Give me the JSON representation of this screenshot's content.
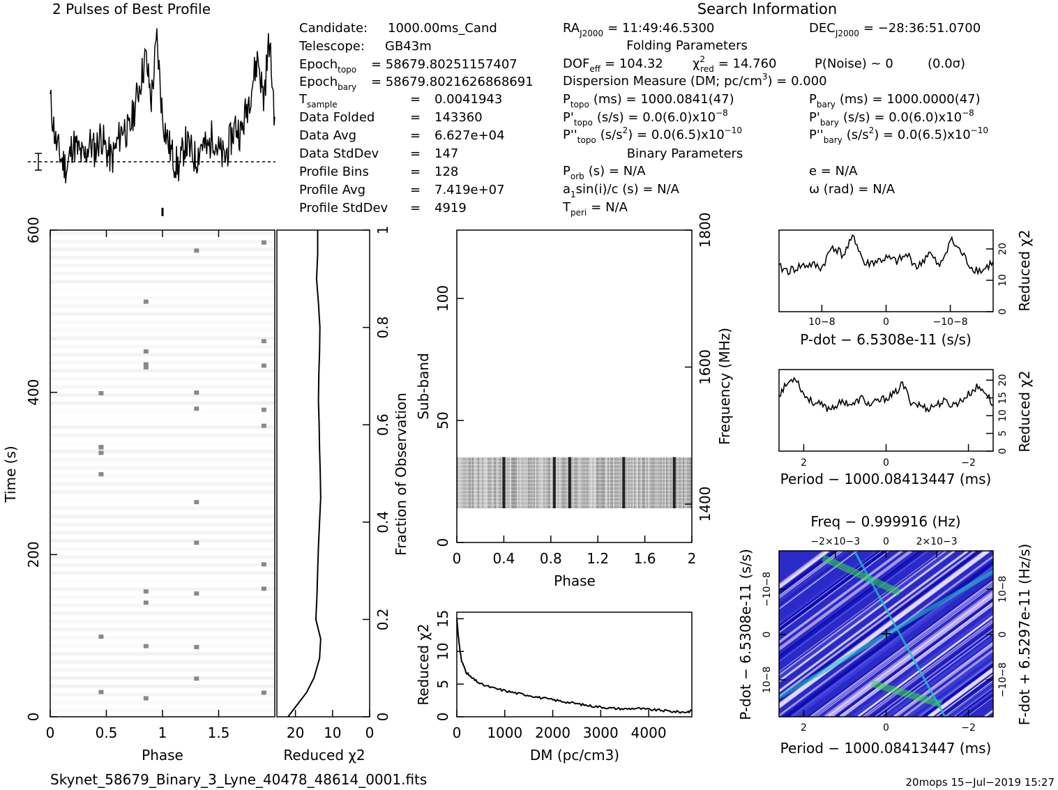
{
  "chart_data": [
    {
      "type": "line",
      "title": "2 Pulses of Best Profile",
      "x": [
        0.0,
        0.05,
        0.1,
        0.15,
        0.2,
        0.25,
        0.3,
        0.35,
        0.4,
        0.45,
        0.5,
        0.55,
        0.6,
        0.65,
        0.7,
        0.75,
        0.8,
        0.85,
        0.9,
        0.95,
        1.0,
        1.05,
        1.1,
        1.15,
        1.2,
        1.25,
        1.3,
        1.35,
        1.4,
        1.45,
        1.5,
        1.55,
        1.6,
        1.65,
        1.7,
        1.75,
        1.8,
        1.85,
        1.9,
        1.95,
        2.0
      ],
      "values": [
        0.6,
        0.35,
        0.25,
        0.2,
        0.35,
        0.3,
        0.25,
        0.35,
        0.3,
        0.4,
        0.3,
        0.25,
        0.35,
        0.45,
        0.4,
        0.55,
        0.7,
        0.85,
        0.6,
        0.95,
        0.5,
        0.35,
        0.25,
        0.2,
        0.35,
        0.3,
        0.25,
        0.35,
        0.3,
        0.4,
        0.3,
        0.25,
        0.35,
        0.45,
        0.4,
        0.55,
        0.7,
        0.85,
        0.6,
        0.95,
        0.5
      ],
      "xlabel": "",
      "ylabel": ""
    },
    {
      "type": "heatmap",
      "xlabel": "Phase",
      "ylabel": "Time (s)",
      "xticks": [
        "0",
        "0.5",
        "1",
        "1.5"
      ],
      "yticks": [
        "0",
        "200",
        "400",
        "600"
      ],
      "xlim": [
        0,
        2
      ],
      "ylim": [
        0,
        600
      ],
      "dark_columns": [
        0.45,
        0.85,
        1.3,
        1.9
      ]
    },
    {
      "type": "line",
      "xlabel": "Reduced χ2",
      "ylabel": "Fraction of Observation",
      "xticks": [
        "20",
        "10",
        "0"
      ],
      "yticks": [
        "0",
        "0.2",
        "0.4",
        "0.6",
        "0.8",
        "1"
      ],
      "xlim": [
        25,
        0
      ],
      "ylim": [
        0,
        1
      ],
      "frac": [
        0.0,
        0.02,
        0.05,
        0.08,
        0.12,
        0.16,
        0.2,
        0.25,
        0.3,
        0.35,
        0.4,
        0.45,
        0.5,
        0.55,
        0.6,
        0.65,
        0.7,
        0.75,
        0.8,
        0.85,
        0.9,
        0.95,
        1.0
      ],
      "values": [
        22,
        20,
        17,
        15,
        13.5,
        13.2,
        14.5,
        14.2,
        14.0,
        13.8,
        13.5,
        13.2,
        13.3,
        13.5,
        13.6,
        13.8,
        13.7,
        13.5,
        13.4,
        13.8,
        14.3,
        14.0,
        14.0
      ]
    },
    {
      "type": "heatmap",
      "xlabel": "Phase",
      "ylabel": "Sub-band",
      "y2label": "Frequency (MHz)",
      "xticks": [
        "0",
        "0.4",
        "0.8",
        "1.2",
        "1.6",
        "2"
      ],
      "yticks": [
        "0",
        "50",
        "100"
      ],
      "y2ticks": [
        "1400",
        "1600",
        "1800"
      ],
      "xlim": [
        0,
        2
      ],
      "ylim": [
        0,
        128
      ],
      "band_range": [
        14,
        35
      ],
      "dark_columns": [
        0.4,
        0.83,
        0.96,
        1.42,
        1.85
      ]
    },
    {
      "type": "line",
      "xlabel": "DM (pc/cm3)",
      "ylabel": "Reduced χ2",
      "xticks": [
        "0",
        "1000",
        "2000",
        "3000",
        "4000"
      ],
      "yticks": [
        "0",
        "5",
        "10",
        "15"
      ],
      "xlim": [
        0,
        4900
      ],
      "ylim": [
        0,
        16
      ],
      "x": [
        0,
        50,
        100,
        200,
        300,
        500,
        750,
        1000,
        1250,
        1500,
        1750,
        2000,
        2250,
        2500,
        2750,
        3000,
        3250,
        3500,
        3750,
        4000,
        4250,
        4500,
        4750,
        4900
      ],
      "values": [
        15,
        11,
        8.5,
        6.8,
        6.0,
        5.0,
        4.4,
        4.0,
        3.6,
        3.3,
        2.9,
        2.6,
        2.3,
        2.0,
        1.7,
        1.5,
        1.3,
        1.2,
        1.3,
        1.1,
        1.0,
        0.8,
        0.7,
        0.9
      ]
    },
    {
      "type": "line",
      "xlabel": "P-dot − 6.5308e-11 (s/s)",
      "ylabel": "Reduced χ2",
      "xticks": [
        "10−8",
        "0",
        "−10−8"
      ],
      "yticks": [
        "0",
        "10",
        "20"
      ],
      "xlim": [
        1.5,
        -1.5
      ],
      "ylim": [
        0,
        26
      ],
      "x": [
        1.5,
        1.35,
        1.2,
        1.05,
        0.9,
        0.75,
        0.6,
        0.45,
        0.3,
        0.15,
        0.0,
        -0.15,
        -0.3,
        -0.45,
        -0.6,
        -0.75,
        -0.9,
        -1.05,
        -1.2,
        -1.35,
        -1.5
      ],
      "values": [
        14,
        13,
        14.5,
        15,
        14,
        21,
        18,
        24,
        15,
        16,
        17,
        16,
        18,
        14,
        19,
        14,
        23,
        19,
        14,
        13,
        16
      ]
    },
    {
      "type": "line",
      "xlabel": "Period − 1000.08413447 (ms)",
      "ylabel": "Reduced χ2",
      "xticks": [
        "2",
        "0",
        "−2"
      ],
      "yticks": [
        "0",
        "5",
        "10",
        "15",
        "20"
      ],
      "xlim": [
        2.6,
        -2.6
      ],
      "ylim": [
        0,
        23
      ],
      "x": [
        2.6,
        2.4,
        2.2,
        2.0,
        1.8,
        1.6,
        1.4,
        1.2,
        1.0,
        0.8,
        0.6,
        0.4,
        0.2,
        0.0,
        -0.2,
        -0.4,
        -0.6,
        -0.8,
        -1.0,
        -1.2,
        -1.4,
        -1.6,
        -1.8,
        -2.0,
        -2.2,
        -2.4,
        -2.6
      ],
      "values": [
        16,
        19,
        21,
        16,
        14,
        13,
        12,
        13,
        14,
        13,
        15,
        13,
        14,
        15,
        16,
        19,
        14,
        13,
        12,
        13,
        14,
        13,
        14,
        16,
        18,
        17,
        13
      ]
    },
    {
      "type": "heatmap",
      "title": "Freq − 0.999916 (Hz)",
      "xlabel": "Period − 1000.08413447 (ms)",
      "ylabel": "P-dot − 6.5308e-11 (s/s)",
      "y2label": "F-dot + 6.5297e-11 (Hz/s)",
      "xticks": [
        "2",
        "0",
        "−2"
      ],
      "x2ticks": [
        "−2×10−3",
        "0",
        "2×10−3"
      ],
      "yticks": [
        "10−8",
        "0",
        "−10−8"
      ],
      "y2ticks": [
        "−10−8",
        "0",
        "10−8"
      ],
      "xlim": [
        2.6,
        -2.6
      ],
      "colors": [
        "#0a0ab0",
        "#3f3fd8",
        "#b8a8ea",
        "#e8dff8",
        "#20c0c0",
        "#30e040"
      ]
    }
  ],
  "search_info": {
    "header": "Search Information",
    "candidate_label": "Candidate:",
    "candidate": "1000.00ms_Cand",
    "telescope_label": "Telescope:",
    "telescope": "GB43m",
    "epoch_topo_label": "Epoch",
    "epoch_topo_sub": "topo",
    "epoch_topo": "= 58679.80251157407",
    "epoch_bary_label": "Epoch",
    "epoch_bary_sub": "bary",
    "epoch_bary": "= 58679.8021626868691",
    "tsample_label": "T",
    "tsample_sub": "sample",
    "tsample": "0.0041943",
    "folded_label": "Data Folded",
    "folded": "143360",
    "avg_label": "Data Avg",
    "avg": "6.627e+04",
    "std_label": "Data StdDev",
    "std": "147",
    "bins_label": "Profile Bins",
    "bins": "128",
    "pavg_label": "Profile Avg",
    "pavg": "7.419e+07",
    "pstd_label": "Profile StdDev",
    "pstd": "4919",
    "eq": "=",
    "ra": "= 11:49:46.5300",
    "dec": "= −28:36:51.0700",
    "ra_prefix": "RA",
    "ra_sub": "J2000",
    "dec_prefix": "DEC",
    "dec_sub": "J2000",
    "folding_header": "Folding Parameters",
    "dof_prefix": "DOF",
    "dof_sub": "eff",
    "dof": "= 104.32",
    "chi_prefix": "χ",
    "chi_sup": "2",
    "chi_sub": "red",
    "chi": "= 14.760",
    "pnoise": "P(Noise) ~ 0",
    "sigma": "(0.0σ)",
    "dm_text_a": "Dispersion Measure (DM; pc/cm",
    "dm_text_sup": "3",
    "dm_text_b": ") = 0.000",
    "ptopo_prefix": "P",
    "ptopo_sub": "topo",
    "ptopo": "(ms) = 1000.0841(47)",
    "pbary_prefix": "P",
    "pbary_sub": "bary",
    "pbary": "(ms) = 1000.0000(47)",
    "pdtopo_prefix": "P'",
    "pdtopo_sub": "topo",
    "pdtopo_a": "(s/s) = 0.0(6.0)x10",
    "pdtopo_exp": "−8",
    "pdbary_prefix": "P'",
    "pdbary_sub": "bary",
    "pdbary_a": "(s/s) = 0.0(6.0)x10",
    "pdbary_exp": "−8",
    "pddtopo_prefix": "P''",
    "pddtopo_sub": "topo",
    "pddtopo_a": "(s/s",
    "pddtopo_sup": "2",
    "pddtopo_b": ") = 0.0(6.5)x10",
    "pddtopo_exp": "−10",
    "pddbary_prefix": "P''",
    "pddbary_sub": "bary",
    "pddbary_a": "(s/s",
    "pddbary_sup": "2",
    "pddbary_b": ") = 0.0(6.5)x10",
    "pddbary_exp": "−10",
    "binary_header": "Binary Parameters",
    "porb_prefix": "P",
    "porb_sub": "orb",
    "porb": "(s) = N/A",
    "e": "e = N/A",
    "a1_a": "a",
    "a1_sub": "1",
    "a1_b": "sin(i)/c (s) = N/A",
    "omega": "ω (rad) = N/A",
    "tperi_prefix": "T",
    "tperi_sub": "peri",
    "tperi": "= N/A"
  },
  "footer": {
    "filename": "Skynet_58679_Binary_3_Lyne_40478_48614_0001.fits",
    "stamp": "20mops 15−Jul−2019 15:27"
  }
}
